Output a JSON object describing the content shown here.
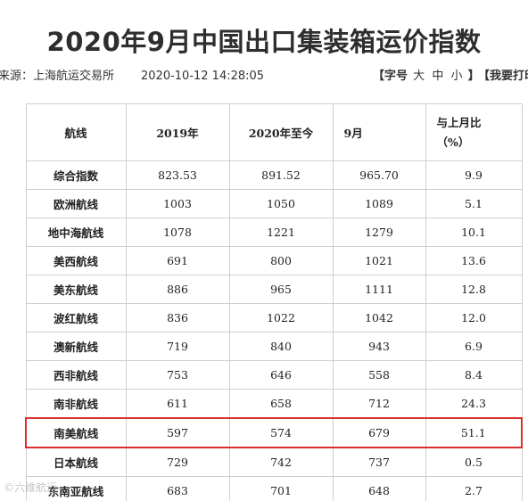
{
  "title": "2020年9月中国出口集装箱运价指数",
  "meta": {
    "source": "来源：上海航运交易所",
    "datetime": "2020-10-12 14:28:05",
    "fontsize_prefix": "【字号",
    "fontsize_large": "大",
    "fontsize_medium": "中",
    "fontsize_small": "小",
    "fontsize_suffix": "】",
    "print": "【我要打印"
  },
  "table": {
    "headers": {
      "route": "航线",
      "y2019": "2019年",
      "y2020ytd": "2020年至今",
      "sep": "9月",
      "mom_line1": "与上月比",
      "mom_line2": "（%）"
    },
    "rows": [
      {
        "route": "综合指数",
        "y2019": "823.53",
        "y2020ytd": "891.52",
        "sep": "965.70",
        "mom": "9.9"
      },
      {
        "route": "欧洲航线",
        "y2019": "1003",
        "y2020ytd": "1050",
        "sep": "1089",
        "mom": "5.1"
      },
      {
        "route": "地中海航线",
        "y2019": "1078",
        "y2020ytd": "1221",
        "sep": "1279",
        "mom": "10.1"
      },
      {
        "route": "美西航线",
        "y2019": "691",
        "y2020ytd": "800",
        "sep": "1021",
        "mom": "13.6"
      },
      {
        "route": "美东航线",
        "y2019": "886",
        "y2020ytd": "965",
        "sep": "1111",
        "mom": "12.8"
      },
      {
        "route": "波红航线",
        "y2019": "836",
        "y2020ytd": "1022",
        "sep": "1042",
        "mom": "12.0"
      },
      {
        "route": "澳新航线",
        "y2019": "719",
        "y2020ytd": "840",
        "sep": "943",
        "mom": "6.9"
      },
      {
        "route": "西非航线",
        "y2019": "753",
        "y2020ytd": "646",
        "sep": "558",
        "mom": "8.4"
      },
      {
        "route": "南非航线",
        "y2019": "611",
        "y2020ytd": "658",
        "sep": "712",
        "mom": "24.3"
      },
      {
        "route": "南美航线",
        "y2019": "597",
        "y2020ytd": "574",
        "sep": "679",
        "mom": "51.1",
        "highlight": true
      },
      {
        "route": "日本航线",
        "y2019": "729",
        "y2020ytd": "742",
        "sep": "737",
        "mom": "0.5"
      },
      {
        "route": "东南亚航线",
        "y2019": "683",
        "y2020ytd": "701",
        "sep": "648",
        "mom": "2.7"
      }
    ]
  },
  "highlight_color": "#d9302b",
  "watermark": "©六维航运"
}
